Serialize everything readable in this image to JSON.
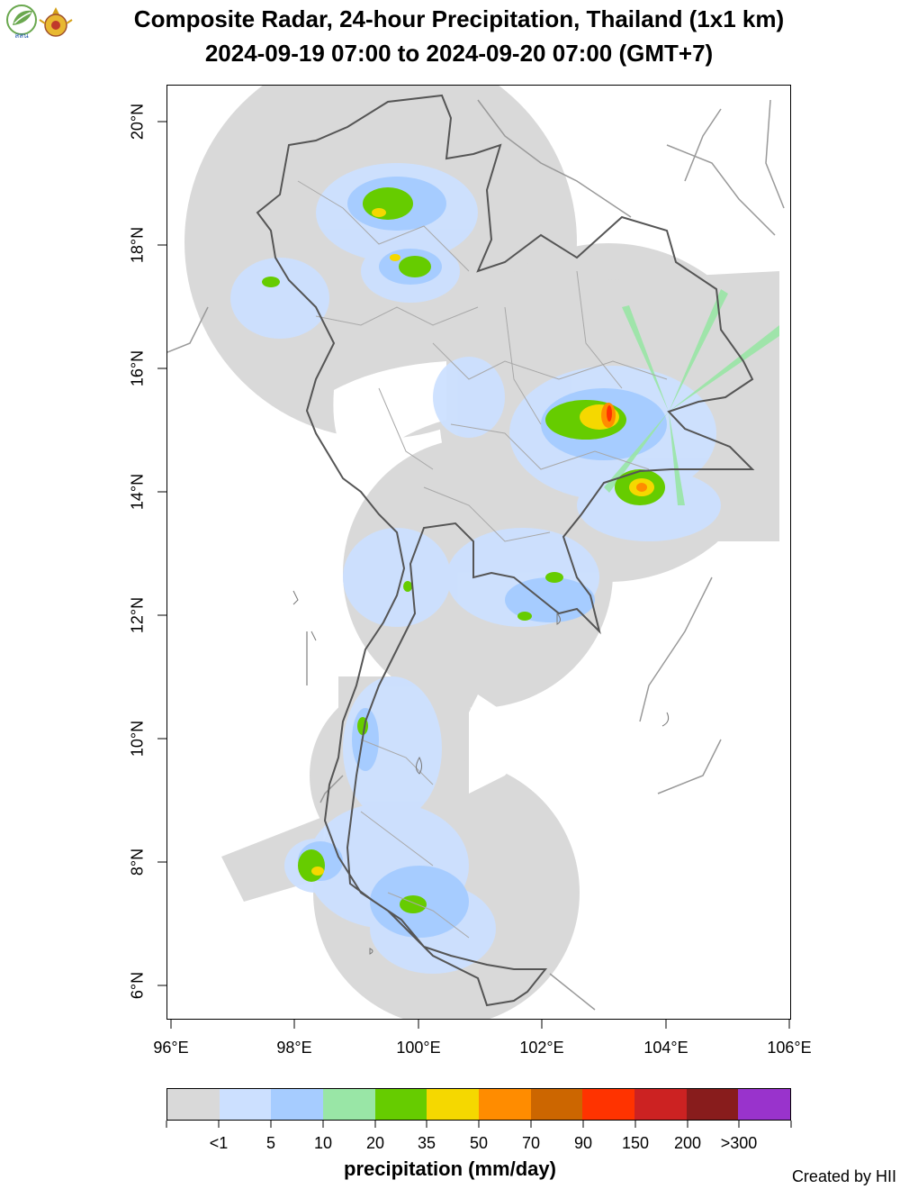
{
  "title": {
    "line1": "Composite Radar, 24-hour Precipitation, Thailand (1x1 km)",
    "line2": "2024-09-19 07:00 to 2024-09-20 07:00 (GMT+7)"
  },
  "logos": {
    "left_icon": "leaf-logo-icon",
    "left_text": "สสน",
    "right_icon": "royal-emblem-icon"
  },
  "map": {
    "x_ticks": [
      "96°E",
      "98°E",
      "100°E",
      "102°E",
      "104°E",
      "106°E"
    ],
    "y_ticks": [
      "6°N",
      "8°N",
      "10°N",
      "12°N",
      "14°N",
      "16°N",
      "18°N",
      "20°N"
    ],
    "colors": {
      "radar_coverage": "#d9d9d9",
      "country_border": "#555555",
      "province_border": "#a8a8a8"
    }
  },
  "legend": {
    "title": "precipitation (mm/day)",
    "labels": [
      "<1",
      "5",
      "10",
      "20",
      "35",
      "50",
      "70",
      "90",
      "150",
      "200",
      ">300"
    ],
    "colors": [
      "#d9d9d9",
      "#cce0ff",
      "#a6ccff",
      "#99e6a6",
      "#66cc00",
      "#f5d800",
      "#ff8c00",
      "#cc6600",
      "#ff3300",
      "#cc2222",
      "#881c1c",
      "#9933cc"
    ]
  },
  "credit": "Created by HII"
}
